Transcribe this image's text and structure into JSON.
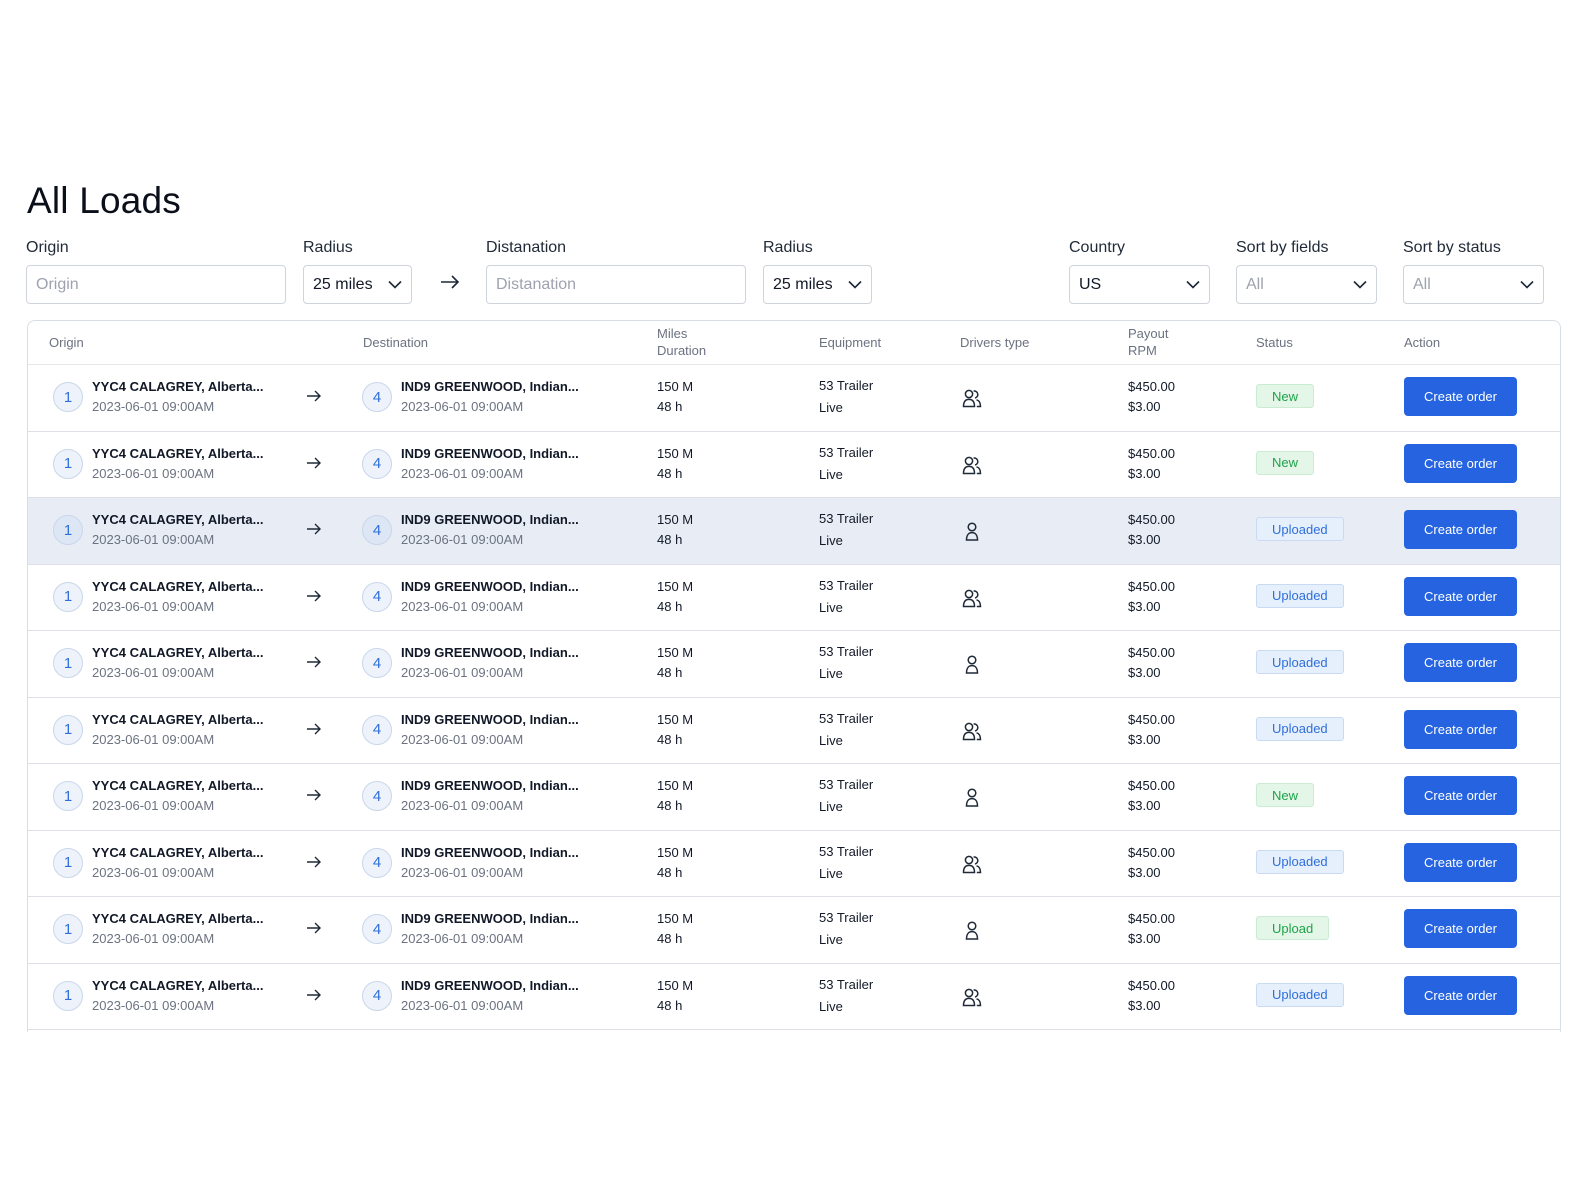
{
  "page": {
    "title": "All Loads"
  },
  "filters": {
    "origin": {
      "label": "Origin",
      "placeholder": "Origin"
    },
    "radius1": {
      "label": "Radius",
      "value": "25 miles"
    },
    "destination": {
      "label": "Distanation",
      "placeholder": "Distanation"
    },
    "radius2": {
      "label": "Radius",
      "value": "25 miles"
    },
    "country": {
      "label": "Country",
      "value": "US"
    },
    "sort_fields": {
      "label": "Sort by fields",
      "value": "All"
    },
    "sort_status": {
      "label": "Sort by status",
      "value": "All"
    }
  },
  "table": {
    "headers": {
      "origin": "Origin",
      "destination": "Destination",
      "miles": "Miles",
      "duration": "Duration",
      "equipment": "Equipment",
      "drivers_type": "Drivers type",
      "payout": "Payout",
      "rpm": "RPM",
      "status": "Status",
      "action": "Action"
    },
    "rows": [
      {
        "origin_num": "1",
        "origin_title": "YYC4  CALAGREY, Alberta...",
        "origin_time": "2023-06-01 09:00AM",
        "dest_num": "4",
        "dest_title": "IND9  GREENWOOD, Indian...",
        "dest_time": "2023-06-01 09:00AM",
        "miles": "150 M",
        "duration": "48 h",
        "equipment": "53 Trailer",
        "equipment_mode": "Live",
        "drivers": "team",
        "payout": "$450.00",
        "rpm": "$3.00",
        "status": "New",
        "status_kind": "new",
        "action": "Create order"
      },
      {
        "origin_num": "1",
        "origin_title": "YYC4  CALAGREY, Alberta...",
        "origin_time": "2023-06-01 09:00AM",
        "dest_num": "4",
        "dest_title": "IND9  GREENWOOD, Indian...",
        "dest_time": "2023-06-01 09:00AM",
        "miles": "150 M",
        "duration": "48 h",
        "equipment": "53 Trailer",
        "equipment_mode": "Live",
        "drivers": "team",
        "payout": "$450.00",
        "rpm": "$3.00",
        "status": "New",
        "status_kind": "new",
        "action": "Create order"
      },
      {
        "origin_num": "1",
        "origin_title": "YYC4  CALAGREY, Alberta...",
        "origin_time": "2023-06-01 09:00AM",
        "dest_num": "4",
        "dest_title": "IND9  GREENWOOD, Indian...",
        "dest_time": "2023-06-01 09:00AM",
        "miles": "150 M",
        "duration": "48 h",
        "equipment": "53 Trailer",
        "equipment_mode": "Live",
        "drivers": "solo",
        "payout": "$450.00",
        "rpm": "$3.00",
        "status": "Uploaded",
        "status_kind": "uploaded",
        "action": "Create order",
        "highlighted": true
      },
      {
        "origin_num": "1",
        "origin_title": "YYC4  CALAGREY, Alberta...",
        "origin_time": "2023-06-01 09:00AM",
        "dest_num": "4",
        "dest_title": "IND9  GREENWOOD, Indian...",
        "dest_time": "2023-06-01 09:00AM",
        "miles": "150 M",
        "duration": "48 h",
        "equipment": "53 Trailer",
        "equipment_mode": "Live",
        "drivers": "team",
        "payout": "$450.00",
        "rpm": "$3.00",
        "status": "Uploaded",
        "status_kind": "uploaded",
        "action": "Create order"
      },
      {
        "origin_num": "1",
        "origin_title": "YYC4  CALAGREY, Alberta...",
        "origin_time": "2023-06-01 09:00AM",
        "dest_num": "4",
        "dest_title": "IND9  GREENWOOD, Indian...",
        "dest_time": "2023-06-01 09:00AM",
        "miles": "150 M",
        "duration": "48 h",
        "equipment": "53 Trailer",
        "equipment_mode": "Live",
        "drivers": "solo",
        "payout": "$450.00",
        "rpm": "$3.00",
        "status": "Uploaded",
        "status_kind": "uploaded",
        "action": "Create order"
      },
      {
        "origin_num": "1",
        "origin_title": "YYC4  CALAGREY, Alberta...",
        "origin_time": "2023-06-01 09:00AM",
        "dest_num": "4",
        "dest_title": "IND9  GREENWOOD, Indian...",
        "dest_time": "2023-06-01 09:00AM",
        "miles": "150 M",
        "duration": "48 h",
        "equipment": "53 Trailer",
        "equipment_mode": "Live",
        "drivers": "team",
        "payout": "$450.00",
        "rpm": "$3.00",
        "status": "Uploaded",
        "status_kind": "uploaded",
        "action": "Create order"
      },
      {
        "origin_num": "1",
        "origin_title": "YYC4  CALAGREY, Alberta...",
        "origin_time": "2023-06-01 09:00AM",
        "dest_num": "4",
        "dest_title": "IND9  GREENWOOD, Indian...",
        "dest_time": "2023-06-01 09:00AM",
        "miles": "150 M",
        "duration": "48 h",
        "equipment": "53 Trailer",
        "equipment_mode": "Live",
        "drivers": "solo",
        "payout": "$450.00",
        "rpm": "$3.00",
        "status": "New",
        "status_kind": "new",
        "action": "Create order"
      },
      {
        "origin_num": "1",
        "origin_title": "YYC4  CALAGREY, Alberta...",
        "origin_time": "2023-06-01 09:00AM",
        "dest_num": "4",
        "dest_title": "IND9  GREENWOOD, Indian...",
        "dest_time": "2023-06-01 09:00AM",
        "miles": "150 M",
        "duration": "48 h",
        "equipment": "53 Trailer",
        "equipment_mode": "Live",
        "drivers": "team",
        "payout": "$450.00",
        "rpm": "$3.00",
        "status": "Uploaded",
        "status_kind": "uploaded",
        "action": "Create order"
      },
      {
        "origin_num": "1",
        "origin_title": "YYC4  CALAGREY, Alberta...",
        "origin_time": "2023-06-01 09:00AM",
        "dest_num": "4",
        "dest_title": "IND9  GREENWOOD, Indian...",
        "dest_time": "2023-06-01 09:00AM",
        "miles": "150 M",
        "duration": "48 h",
        "equipment": "53 Trailer",
        "equipment_mode": "Live",
        "drivers": "solo",
        "payout": "$450.00",
        "rpm": "$3.00",
        "status": "Upload",
        "status_kind": "upload",
        "action": "Create order"
      },
      {
        "origin_num": "1",
        "origin_title": "YYC4  CALAGREY, Alberta...",
        "origin_time": "2023-06-01 09:00AM",
        "dest_num": "4",
        "dest_title": "IND9  GREENWOOD, Indian...",
        "dest_time": "2023-06-01 09:00AM",
        "miles": "150 M",
        "duration": "48 h",
        "equipment": "53 Trailer",
        "equipment_mode": "Live",
        "drivers": "team",
        "payout": "$450.00",
        "rpm": "$3.00",
        "status": "Uploaded",
        "status_kind": "uploaded",
        "action": "Create order"
      }
    ]
  }
}
